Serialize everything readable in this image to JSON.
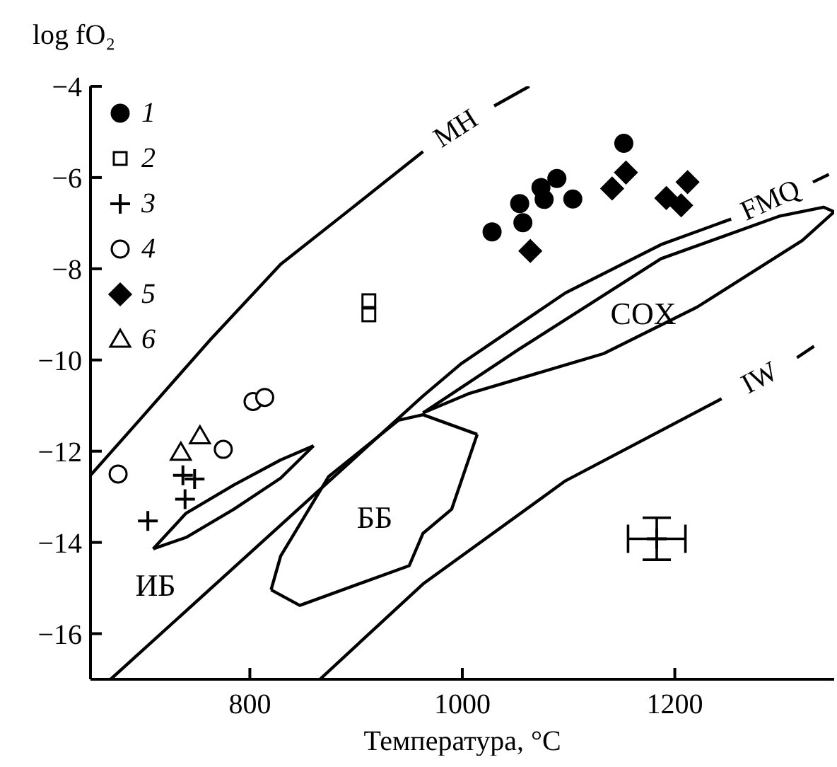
{
  "chart_data": {
    "type": "scatter",
    "ylabel": "log fO₂",
    "xlabel": "Температура, °C",
    "xlim": [
      650,
      1350
    ],
    "ylim": [
      -17,
      -4
    ],
    "xticks": [
      800,
      1000,
      1200
    ],
    "yticks": [
      -16,
      -14,
      -12,
      -10,
      -8,
      -6,
      -4
    ],
    "legend": "top left",
    "series": [
      {
        "name": "1",
        "color": "#000000",
        "marker": "circle",
        "x": [
          1028,
          1054,
          1057,
          1074,
          1077,
          1089,
          1104,
          1152
        ],
        "values": [
          -7.19,
          -6.57,
          -6.99,
          -6.22,
          -6.48,
          -6.02,
          -6.47,
          -5.25
        ]
      },
      {
        "name": "2",
        "color": "#ffffff",
        "marker": "square",
        "x": [
          912,
          912
        ],
        "values": [
          -8.7,
          -9.01
        ]
      },
      {
        "name": "3",
        "color": "#000000",
        "marker": "cross",
        "x": [
          737,
          748,
          739,
          704
        ],
        "values": [
          -12.53,
          -12.61,
          -13.05,
          -13.53
        ]
      },
      {
        "name": "4",
        "color": "#ffffff",
        "marker": "circle",
        "x": [
          803,
          814,
          676,
          775
        ],
        "values": [
          -10.91,
          -10.82,
          -12.5,
          -11.96
        ]
      },
      {
        "name": "5",
        "color": "#000000",
        "marker": "diamond",
        "x": [
          1064,
          1141,
          1154,
          1192,
          1206,
          1212
        ],
        "values": [
          -7.61,
          -6.24,
          -5.89,
          -6.45,
          -6.61,
          -6.1
        ]
      },
      {
        "name": "6",
        "color": "#ffffff",
        "marker": "triangle",
        "x": [
          753,
          735
        ],
        "values": [
          -11.67,
          -12.03
        ]
      },
      {
        "color": "#000000",
        "marker": "cross",
        "x": [
          1183
        ],
        "values": [
          -13.92
        ],
        "errors": [
          0.46
        ],
        "xerrors": [
          27
        ]
      },
      {
        "name": "MH",
        "type": "line",
        "color": "#000000",
        "x": [
          650,
          696,
          763,
          829,
          896,
          963,
          994,
          1030,
          1063
        ],
        "values": [
          -12.53,
          -11.32,
          -9.55,
          -7.9,
          -6.67,
          -5.43,
          null,
          -4.43,
          -4
        ]
      },
      {
        "name": "FMQ",
        "type": "line",
        "color": "#000000",
        "x": [
          669,
          963,
          999,
          1097,
          1187,
          1253,
          1290,
          1330,
          1345
        ],
        "values": [
          -17,
          -10.79,
          -10.08,
          -8.53,
          -7.47,
          -6.91,
          null,
          -6.1,
          -5.93
        ]
      },
      {
        "name": "IW",
        "type": "line",
        "color": "#000000",
        "x": [
          866,
          963,
          1097,
          1244,
          1280,
          1315,
          1331
        ],
        "values": [
          -17,
          -14.91,
          -12.65,
          -10.85,
          null,
          -9.95,
          -9.7
        ]
      },
      {
        "type": "line",
        "color": "#000000",
        "x": [
          963,
          1053,
          1187,
          1298,
          1340,
          1350
        ],
        "values": [
          -11.16,
          -9.77,
          -7.78,
          -6.85,
          -6.65,
          -6.75
        ]
      },
      {
        "type": "line",
        "color": "#000000",
        "x": [
          963,
          1007,
          1133,
          1221,
          1320,
          1350
        ],
        "values": [
          -11.16,
          -10.73,
          -9.86,
          -8.84,
          -7.38,
          -6.75
        ]
      },
      {
        "type": "line",
        "color": "#000000",
        "x": [
          820,
          829,
          874,
          940,
          963,
          1014
        ],
        "values": [
          -15.04,
          -14.3,
          -12.56,
          -11.32,
          -11.2,
          -11.63
        ]
      },
      {
        "type": "line",
        "color": "#000000",
        "x": [
          820,
          847,
          950,
          963,
          990,
          1014
        ],
        "values": [
          -15.04,
          -15.38,
          -14.51,
          -13.8,
          -13.27,
          -11.63
        ]
      },
      {
        "type": "line",
        "color": "#000000",
        "x": [
          709,
          740,
          785,
          829,
          860
        ],
        "values": [
          -14.14,
          -13.36,
          -12.74,
          -12.19,
          -11.88
        ]
      },
      {
        "type": "line",
        "color": "#000000",
        "x": [
          709,
          740,
          785,
          829,
          860
        ],
        "values": [
          -14.14,
          -13.89,
          -13.27,
          -12.59,
          -11.88
        ]
      }
    ],
    "annotations": [
      "ИБ",
      "ББ",
      "COX"
    ]
  }
}
